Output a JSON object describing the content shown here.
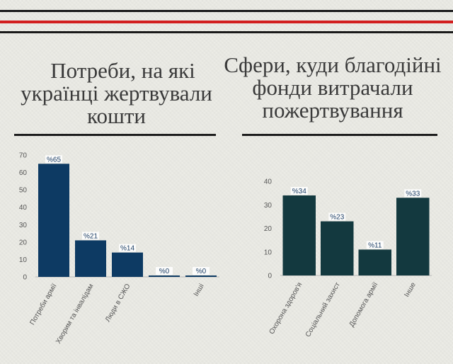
{
  "header": {
    "line_colors": [
      "#1a1a1a",
      "#d21f1f",
      "#1a1a1a"
    ]
  },
  "titles": {
    "left": [
      "Потреби, на які",
      "українці жертвували",
      "кошти"
    ],
    "right": [
      "Сфери, куди благодійні",
      "фонди витрачали",
      "пожертвування"
    ]
  },
  "chart_data": [
    {
      "type": "bar",
      "color": "#0d3a63",
      "categories": [
        "Потреби армії",
        "Хворим та інвалідам",
        "Люди в СЖО",
        "",
        "Інші"
      ],
      "values": [
        65,
        21,
        14,
        0,
        0
      ],
      "data_labels": [
        "%65",
        "%21",
        "%14",
        "%0",
        "%0"
      ],
      "ylim": [
        0,
        70
      ],
      "yticks": [
        0,
        10,
        20,
        30,
        40,
        50,
        60,
        70
      ],
      "grid": false
    },
    {
      "type": "bar",
      "color": "#13393f",
      "categories": [
        "Охорона здоров'я",
        "Соціальний захист",
        "Допомога армії",
        "Інше"
      ],
      "values": [
        34,
        23,
        11,
        33
      ],
      "data_labels": [
        "%34",
        "%23",
        "%11",
        "%33"
      ],
      "ylim": [
        0,
        40
      ],
      "yticks": [
        0,
        10,
        20,
        30,
        40
      ],
      "grid": false
    }
  ]
}
